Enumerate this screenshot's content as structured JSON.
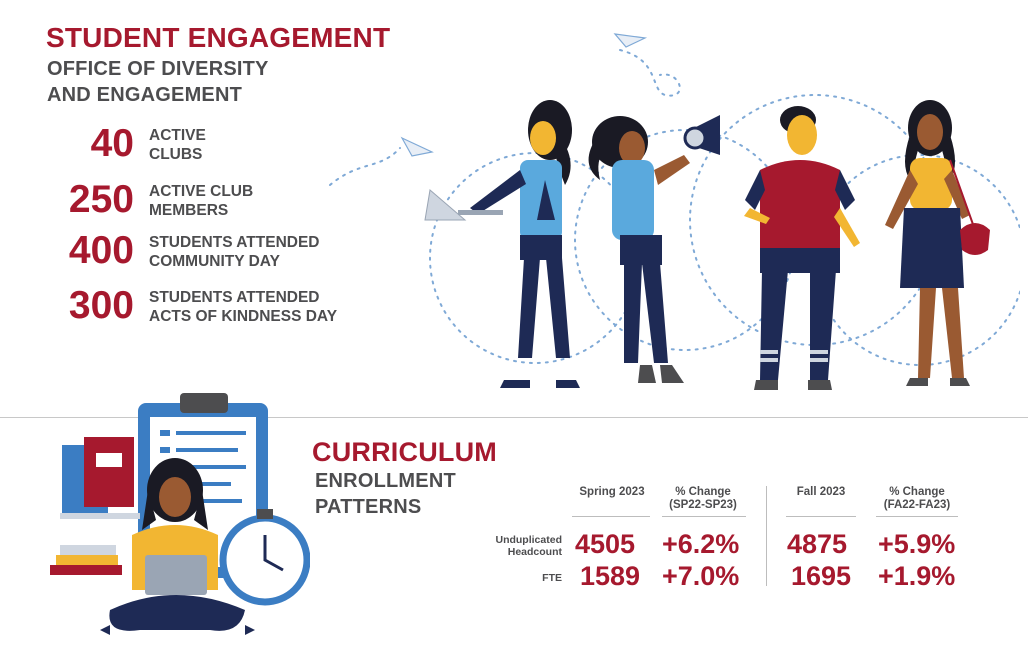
{
  "student_engagement": {
    "title": "STUDENT ENGAGEMENT",
    "subtitle_line1": "OFFICE OF DIVERSITY",
    "subtitle_line2": "AND ENGAGEMENT",
    "stats": [
      {
        "value": "40",
        "label_line1": "ACTIVE",
        "label_line2": "CLUBS"
      },
      {
        "value": "250",
        "label_line1": "ACTIVE CLUB",
        "label_line2": "MEMBERS"
      },
      {
        "value": "400",
        "label_line1": "STUDENTS ATTENDED",
        "label_line2": "COMMUNITY DAY"
      },
      {
        "value": "300",
        "label_line1": "STUDENTS ATTENDED",
        "label_line2": "ACTS OF KINDNESS DAY"
      }
    ]
  },
  "curriculum": {
    "title": "CURRICULUM",
    "subtitle_line1": "ENROLLMENT",
    "subtitle_line2": "PATTERNS",
    "headers": {
      "spring": "Spring 2023",
      "spring_change_line1": "% Change",
      "spring_change_line2": "(SP22-SP23)",
      "fall": "Fall 2023",
      "fall_change_line1": "% Change",
      "fall_change_line2": "(FA22-FA23)"
    },
    "rows": [
      {
        "label_line1": "Unduplicated",
        "label_line2": "Headcount",
        "spring": "4505",
        "spring_change": "+6.2%",
        "fall": "4875",
        "fall_change": "+5.9%"
      },
      {
        "label_line1": "FTE",
        "label_line2": "",
        "spring": "1589",
        "spring_change": "+7.0%",
        "fall": "1695",
        "fall_change": "+1.9%"
      }
    ]
  },
  "colors": {
    "brand_red": "#a6192e",
    "text_gray": "#4d4d4f",
    "accent_blue": "#5aa9dd",
    "navy": "#1e2a55",
    "yellow": "#f2b632"
  },
  "icons": [
    "paper-plane-icon",
    "megaphone-icon",
    "clipboard-icon",
    "stopwatch-icon",
    "books-icon",
    "laptop-icon"
  ]
}
